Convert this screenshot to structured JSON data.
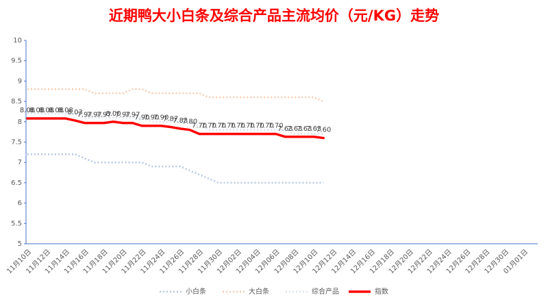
{
  "chart_data": {
    "type": "line",
    "title": "近期鸭大小白条及综合产品主流均价（元/KG）走势",
    "categories": [
      "11月10日",
      null,
      "11月12日",
      null,
      "11月14日",
      null,
      "11月16日",
      null,
      "11月18日",
      null,
      "11月20日",
      null,
      "11月22日",
      null,
      "11月24日",
      null,
      "11月26日",
      null,
      "11月28日",
      null,
      "11月30日",
      null,
      "12月02日",
      null,
      "12月04日",
      null,
      "12月06日",
      null,
      "12月08日",
      null,
      "12月10日",
      null,
      "12月12日",
      null,
      "12月14日",
      null,
      "12月16日",
      null,
      "12月18日",
      null,
      "12月20日",
      null,
      "12月22日",
      null,
      "12月24日",
      null,
      "12月26日",
      null,
      "12月28日",
      null,
      "12月30日",
      null,
      "01月01日"
    ],
    "series": [
      {
        "name": "小白条",
        "color": "#b4c7e7",
        "line_style": "dotted",
        "values": [
          7.2,
          7.2,
          7.2,
          7.2,
          7.2,
          7.2,
          7.1,
          7.0,
          7.0,
          7.0,
          7.0,
          7.0,
          7.0,
          6.9,
          6.9,
          6.9,
          6.9,
          6.8,
          6.7,
          6.6,
          6.5,
          6.5,
          6.5,
          6.5,
          6.5,
          6.5,
          6.5,
          6.5,
          6.5,
          6.5,
          6.5,
          6.5,
          null,
          null,
          null,
          null,
          null,
          null,
          null,
          null,
          null,
          null,
          null,
          null,
          null,
          null,
          null,
          null,
          null,
          null,
          null,
          null,
          null
        ]
      },
      {
        "name": "大白条",
        "color": "#f8cbad",
        "line_style": "dotted",
        "values": [
          8.8,
          8.8,
          8.8,
          8.8,
          8.8,
          8.8,
          8.8,
          8.7,
          8.7,
          8.7,
          8.7,
          8.8,
          8.8,
          8.7,
          8.7,
          8.7,
          8.7,
          8.7,
          8.7,
          8.6,
          8.6,
          8.6,
          8.6,
          8.6,
          8.6,
          8.6,
          8.6,
          8.6,
          8.6,
          8.6,
          8.6,
          8.5,
          null,
          null,
          null,
          null,
          null,
          null,
          null,
          null,
          null,
          null,
          null,
          null,
          null,
          null,
          null,
          null,
          null,
          null,
          null,
          null,
          null
        ]
      },
      {
        "name": "综合产品",
        "color": "#dae3f3",
        "line_style": "dotted",
        "values": [
          8.2,
          8.2,
          8.2,
          8.2,
          8.2,
          8.2,
          8.1,
          8.1,
          8.1,
          8.1,
          8.1,
          8.1,
          8.1,
          8.0,
          8.0,
          8.0,
          8.0,
          8.0,
          7.9,
          7.8,
          7.8,
          7.8,
          7.8,
          7.8,
          7.8,
          7.8,
          7.8,
          7.8,
          7.7,
          7.7,
          7.7,
          7.7,
          null,
          null,
          null,
          null,
          null,
          null,
          null,
          null,
          null,
          null,
          null,
          null,
          null,
          null,
          null,
          null,
          null,
          null,
          null,
          null,
          null
        ]
      },
      {
        "name": "指数",
        "color": "#ff0000",
        "line_style": "solid",
        "values": [
          8.08,
          8.08,
          8.08,
          8.08,
          8.08,
          8.03,
          7.97,
          7.97,
          7.97,
          8.0,
          7.97,
          7.97,
          7.9,
          7.9,
          7.9,
          7.87,
          7.83,
          7.8,
          7.7,
          7.7,
          7.7,
          7.7,
          7.7,
          7.7,
          7.7,
          7.7,
          7.7,
          7.63,
          7.63,
          7.63,
          7.63,
          7.6,
          null,
          null,
          null,
          null,
          null,
          null,
          null,
          null,
          null,
          null,
          null,
          null,
          null,
          null,
          null,
          null,
          null,
          null,
          null,
          null,
          null
        ],
        "value_labels": [
          "8.08",
          "8.08",
          "8.08",
          "8.08",
          "8.08",
          "8.03",
          "7.97",
          "7.97",
          "7.97",
          "8.00",
          "7.97",
          "7.97",
          "7.90",
          "7.90",
          "7.90",
          "7.87",
          "7.83",
          "7.80",
          "7.70",
          "7.70",
          "7.70",
          "7.70",
          "7.70",
          "7.70",
          "7.70",
          "7.70",
          "7.70",
          "7.63",
          "7.63",
          "7.63",
          "7.63",
          "7.60",
          null,
          null,
          null,
          null,
          null,
          null,
          null,
          null,
          null,
          null,
          null,
          null,
          null,
          null,
          null,
          null,
          null,
          null,
          null,
          null,
          null
        ]
      }
    ],
    "ylim": [
      5,
      10
    ],
    "yticks": [
      5,
      5.5,
      6,
      6.5,
      7,
      7.5,
      8,
      8.5,
      9,
      9.5,
      10
    ],
    "grid": false,
    "legend": "bottom"
  }
}
